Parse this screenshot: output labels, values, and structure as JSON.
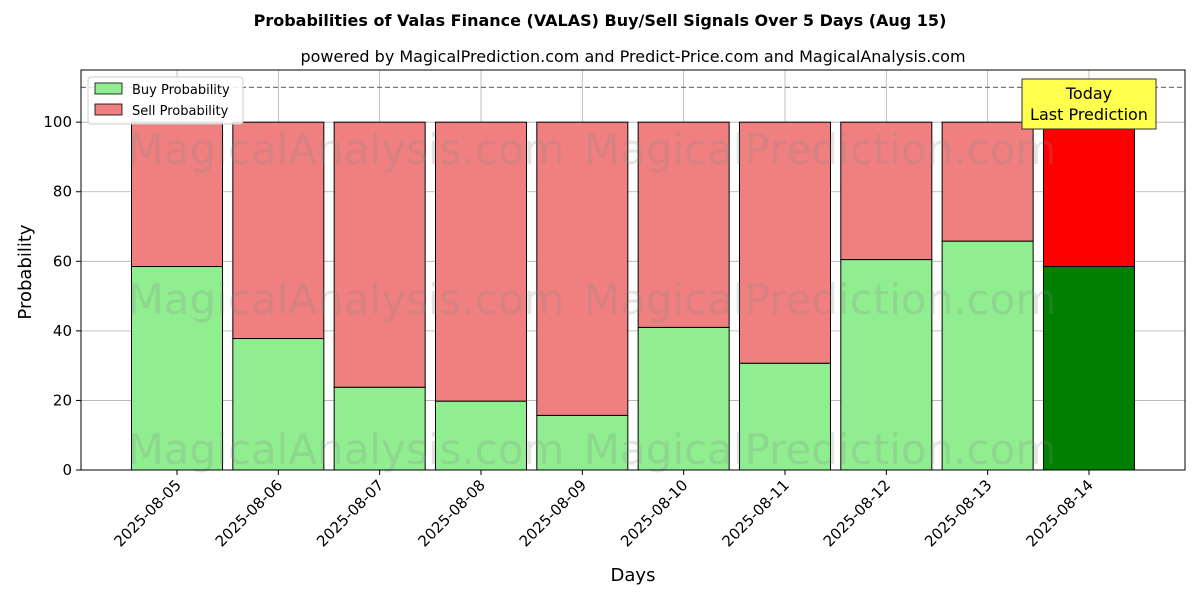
{
  "chart_data": {
    "type": "bar",
    "stacked": true,
    "title": "Probabilities of Valas Finance (VALAS) Buy/Sell Signals Over 5 Days (Aug 15)",
    "subtitle": "powered by MagicalPrediction.com and Predict-Price.com and MagicalAnalysis.com",
    "xlabel": "Days",
    "ylabel": "Probability",
    "ylim": [
      0,
      115
    ],
    "yticks": [
      0,
      20,
      40,
      60,
      80,
      100
    ],
    "reference_line": 110,
    "grid": true,
    "legend_position": "top-left",
    "categories": [
      "2025-08-05",
      "2025-08-06",
      "2025-08-07",
      "2025-08-08",
      "2025-08-09",
      "2025-08-10",
      "2025-08-11",
      "2025-08-12",
      "2025-08-13",
      "2025-08-14"
    ],
    "series": [
      {
        "name": "Buy Probability",
        "values": [
          58.5,
          37.8,
          23.8,
          19.8,
          15.7,
          41.0,
          30.7,
          60.5,
          65.8,
          58.5
        ],
        "color": "#90ee90",
        "highlight_color": "#008000"
      },
      {
        "name": "Sell Probability",
        "values": [
          41.5,
          62.2,
          76.2,
          80.2,
          84.3,
          59.0,
          69.3,
          39.5,
          34.2,
          41.5
        ],
        "color": "#f08080",
        "highlight_color": "#ff0000"
      }
    ],
    "highlight_index": 9,
    "annotation": {
      "lines": [
        "Today",
        "Last Prediction"
      ],
      "color": "#ffff4d"
    },
    "watermarks": [
      "MagicalAnalysis.com",
      "MagicalPrediction.com",
      "MagicalAnalysis.com",
      "MagicalPrediction.com",
      "MagicalAnalysis.com",
      "MagicalPrediction.com"
    ]
  }
}
